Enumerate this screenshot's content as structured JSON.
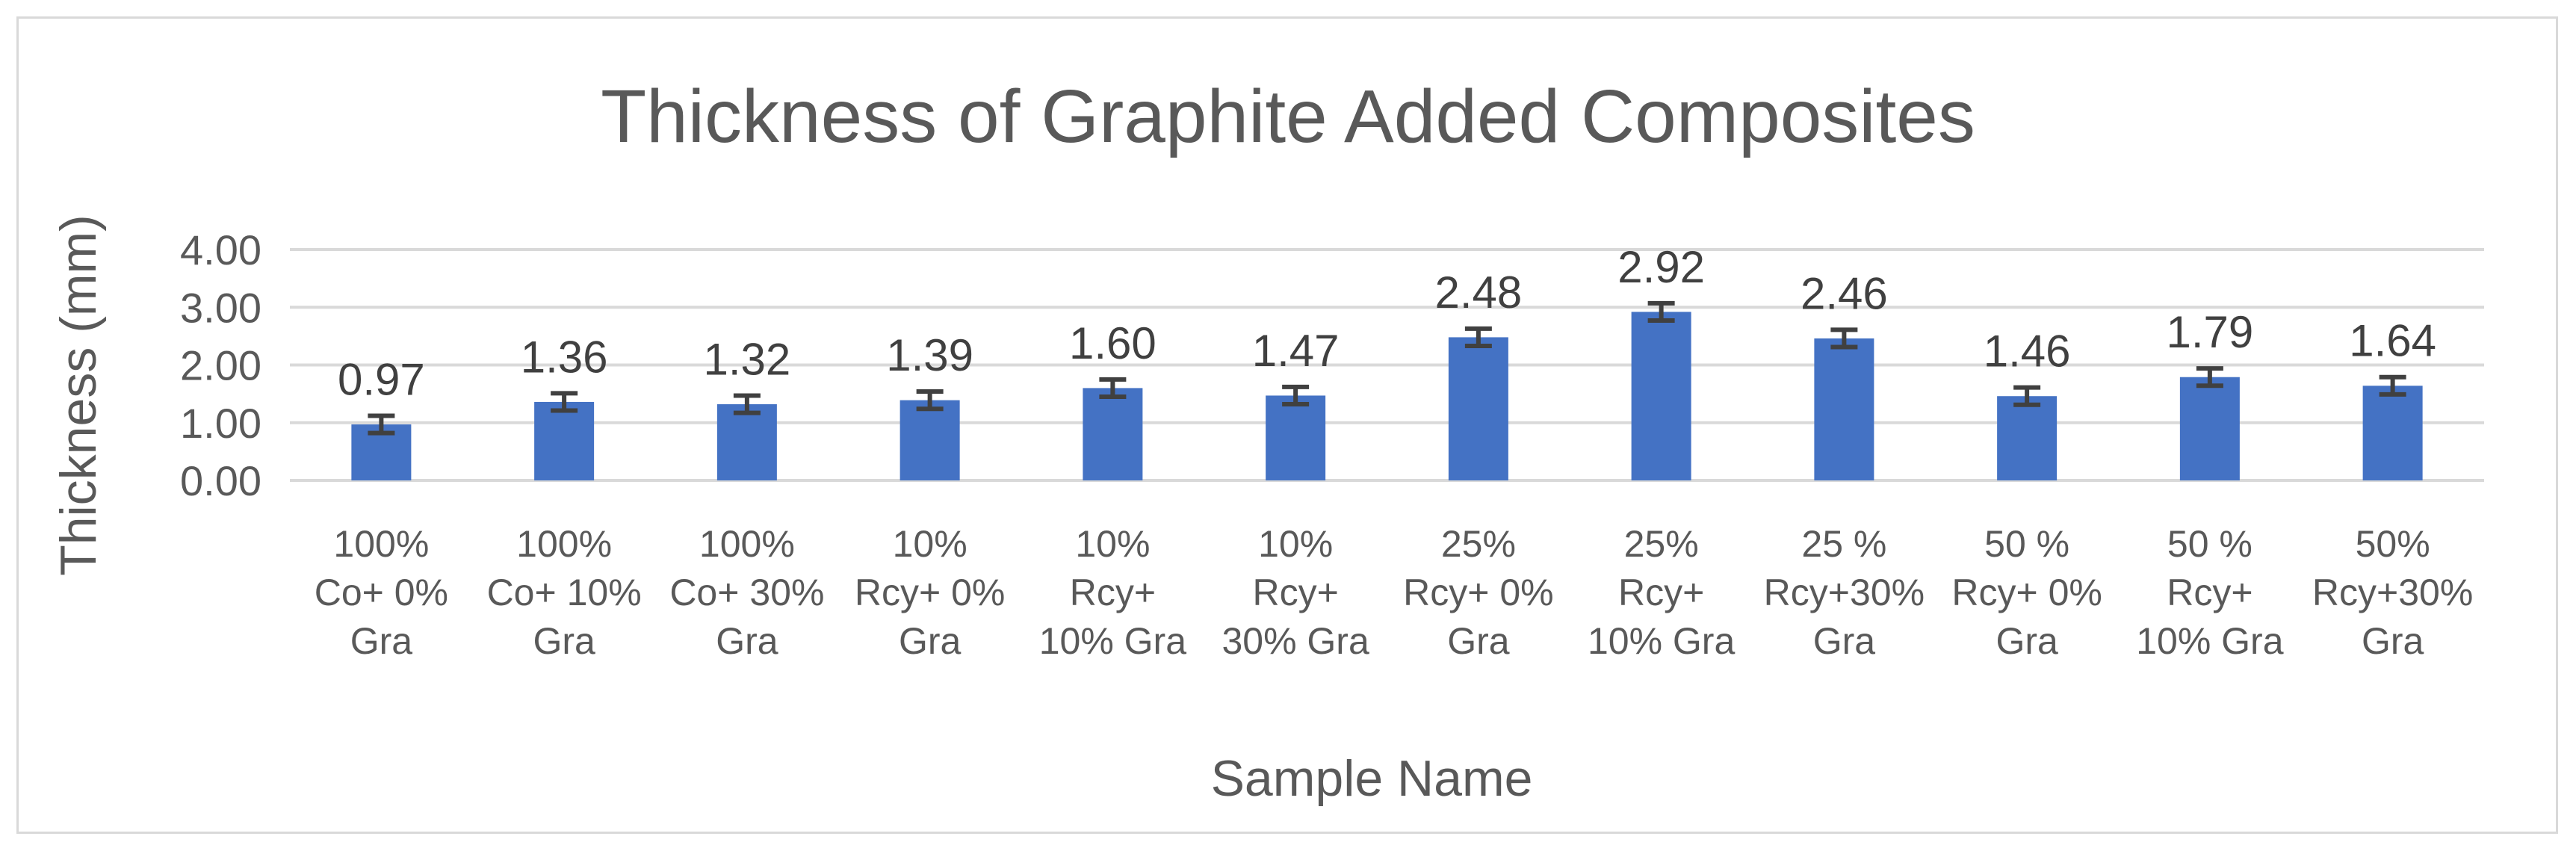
{
  "chart_data": {
    "type": "bar",
    "title": "Thickness of Graphite Added Composites",
    "xlabel": "Sample Name",
    "ylabel": "Thickness (mm)",
    "ylim": [
      0,
      4
    ],
    "yticks": [
      "0.00",
      "1.00",
      "2.00",
      "3.00",
      "4.00"
    ],
    "grid": true,
    "legend": "none",
    "bar_color": "#4472c4",
    "error_bar_color": "#404040",
    "categories": [
      [
        "100%",
        "Co+ 0%",
        "Gra"
      ],
      [
        "100%",
        "Co+ 10%",
        "Gra"
      ],
      [
        "100%",
        "Co+ 30%",
        "Gra"
      ],
      [
        "10%",
        "Rcy+ 0%",
        "Gra"
      ],
      [
        "10%",
        "Rcy+",
        "10% Gra"
      ],
      [
        "10%",
        "Rcy+",
        "30% Gra"
      ],
      [
        "25%",
        "Rcy+ 0%",
        "Gra"
      ],
      [
        "25%",
        "Rcy+",
        "10% Gra"
      ],
      [
        "25 %",
        "Rcy+30%",
        "Gra"
      ],
      [
        "50 %",
        "Rcy+ 0%",
        "Gra"
      ],
      [
        "50 %",
        "Rcy+",
        "10% Gra"
      ],
      [
        "50%",
        "Rcy+30%",
        "Gra"
      ]
    ],
    "values": [
      0.97,
      1.36,
      1.32,
      1.39,
      1.6,
      1.47,
      2.48,
      2.92,
      2.46,
      1.46,
      1.79,
      1.64
    ],
    "data_labels": [
      "0.97",
      "1.36",
      "1.32",
      "1.39",
      "1.60",
      "1.47",
      "2.48",
      "2.92",
      "2.46",
      "1.46",
      "1.79",
      "1.64"
    ],
    "error": [
      0.15,
      0.15,
      0.15,
      0.15,
      0.15,
      0.15,
      0.15,
      0.15,
      0.15,
      0.15,
      0.15,
      0.15
    ]
  }
}
